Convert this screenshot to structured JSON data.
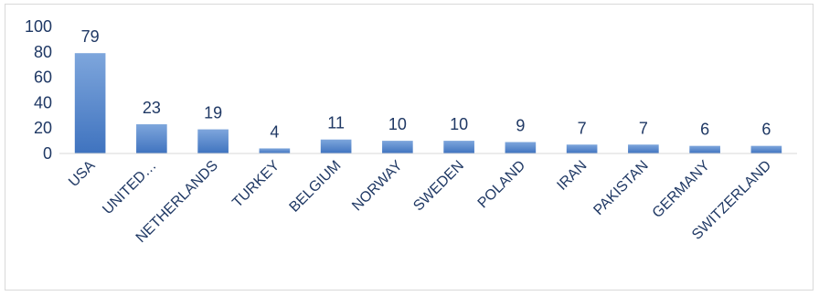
{
  "chart_data": {
    "type": "bar",
    "categories": [
      "USA",
      "UNITED…",
      "NETHERLANDS",
      "TURKEY",
      "BELGIUM",
      "NORWAY",
      "SWEDEN",
      "POLAND",
      "IRAN",
      "PAKISTAN",
      "GERMANY",
      "SWITZERLAND"
    ],
    "values": [
      79,
      23,
      19,
      4,
      11,
      10,
      10,
      9,
      7,
      7,
      6,
      6
    ],
    "data_labels": [
      "79",
      "23",
      "19",
      "4",
      "11",
      "10",
      "10",
      "9",
      "7",
      "7",
      "6",
      "6"
    ],
    "y_ticks": [
      "0",
      "20",
      "40",
      "60",
      "80",
      "100"
    ],
    "ylim": [
      0,
      100
    ],
    "grid": false,
    "legend": "none",
    "bar_color_top": "#7ea6dc",
    "bar_color_bottom": "#3f73bf",
    "axis_color": "#d9d9d9",
    "text_color": "#1f3864"
  }
}
